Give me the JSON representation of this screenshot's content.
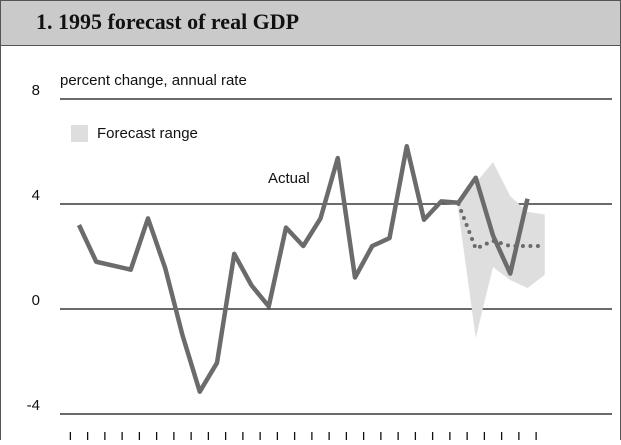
{
  "chart_data": {
    "type": "line",
    "title": "1. 1995 forecast of real GDP",
    "ylabel": "percent change, annual rate",
    "categories": [
      null,
      null,
      null,
      null,
      null,
      null,
      null,
      null,
      null,
      null,
      null,
      null,
      null,
      null,
      null,
      null,
      null,
      null,
      null,
      null,
      null,
      null,
      null,
      null,
      null,
      null,
      null,
      null
    ],
    "series": [
      {
        "name": "Actual",
        "color": "#6b6b6b",
        "style": "solid",
        "values": [
          3.2,
          1.8,
          1.65,
          1.5,
          3.45,
          1.55,
          -1.0,
          -3.15,
          -2.05,
          2.1,
          0.9,
          0.1,
          3.1,
          2.4,
          3.45,
          5.75,
          1.2,
          2.4,
          2.7,
          6.2,
          3.4,
          4.1,
          4.05,
          5.0,
          2.8,
          1.35,
          4.2,
          null
        ]
      },
      {
        "color": "#6b6b6b",
        "style": "dotted",
        "values": [
          null,
          null,
          null,
          null,
          null,
          null,
          null,
          null,
          null,
          null,
          null,
          null,
          null,
          null,
          null,
          null,
          null,
          null,
          null,
          null,
          null,
          null,
          4.0,
          2.3,
          2.6,
          2.4,
          2.4,
          2.4
        ]
      }
    ],
    "band": {
      "name": "Forecast range",
      "color": "#dedede",
      "lower": [
        null,
        null,
        null,
        null,
        null,
        null,
        null,
        null,
        null,
        null,
        null,
        null,
        null,
        null,
        null,
        null,
        null,
        null,
        null,
        null,
        null,
        null,
        3.7,
        -1.1,
        1.6,
        1.1,
        0.8,
        1.3
      ],
      "upper": [
        null,
        null,
        null,
        null,
        null,
        null,
        null,
        null,
        null,
        null,
        null,
        null,
        null,
        null,
        null,
        null,
        null,
        null,
        null,
        null,
        null,
        null,
        4.0,
        4.8,
        5.6,
        4.3,
        3.7,
        3.6
      ]
    },
    "ylim": [
      -4.4,
      8
    ],
    "yticks": [
      8,
      4,
      0,
      -4
    ],
    "grid": true
  }
}
